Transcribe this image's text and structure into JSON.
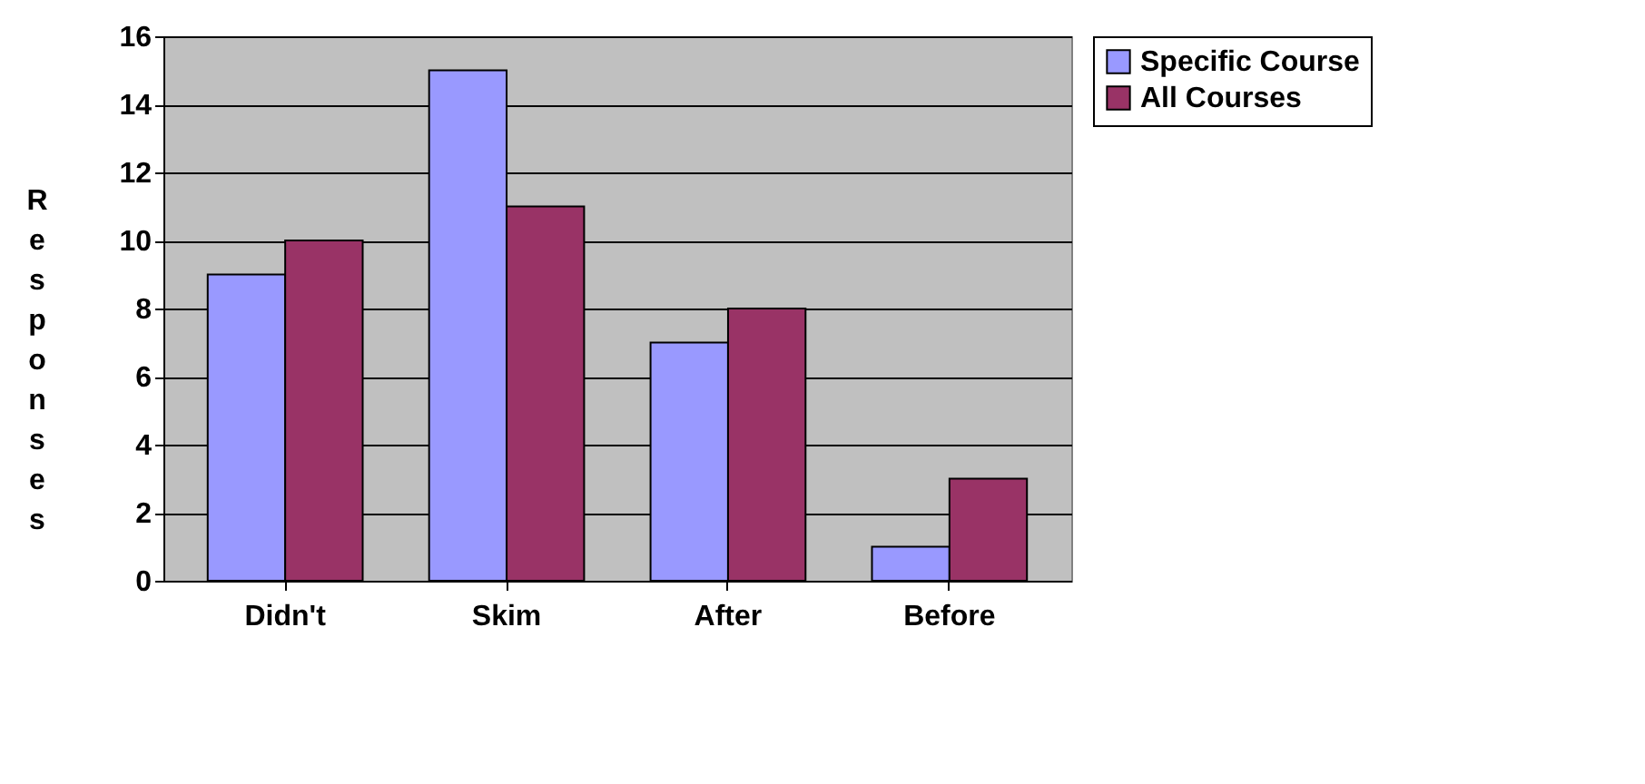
{
  "chart_data": {
    "type": "bar",
    "ylabel": "Responses",
    "categories": [
      "Didn't",
      "Skim",
      "After",
      "Before"
    ],
    "series": [
      {
        "name": "Specific Course",
        "color": "#9999ff",
        "values": [
          9,
          15,
          7,
          1
        ]
      },
      {
        "name": "All Courses",
        "color": "#993366",
        "values": [
          10,
          11,
          8,
          3
        ]
      }
    ],
    "ylim": [
      0,
      16
    ],
    "yticks": [
      0,
      2,
      4,
      6,
      8,
      10,
      12,
      14,
      16
    ],
    "grid": "y",
    "legend": "right"
  }
}
